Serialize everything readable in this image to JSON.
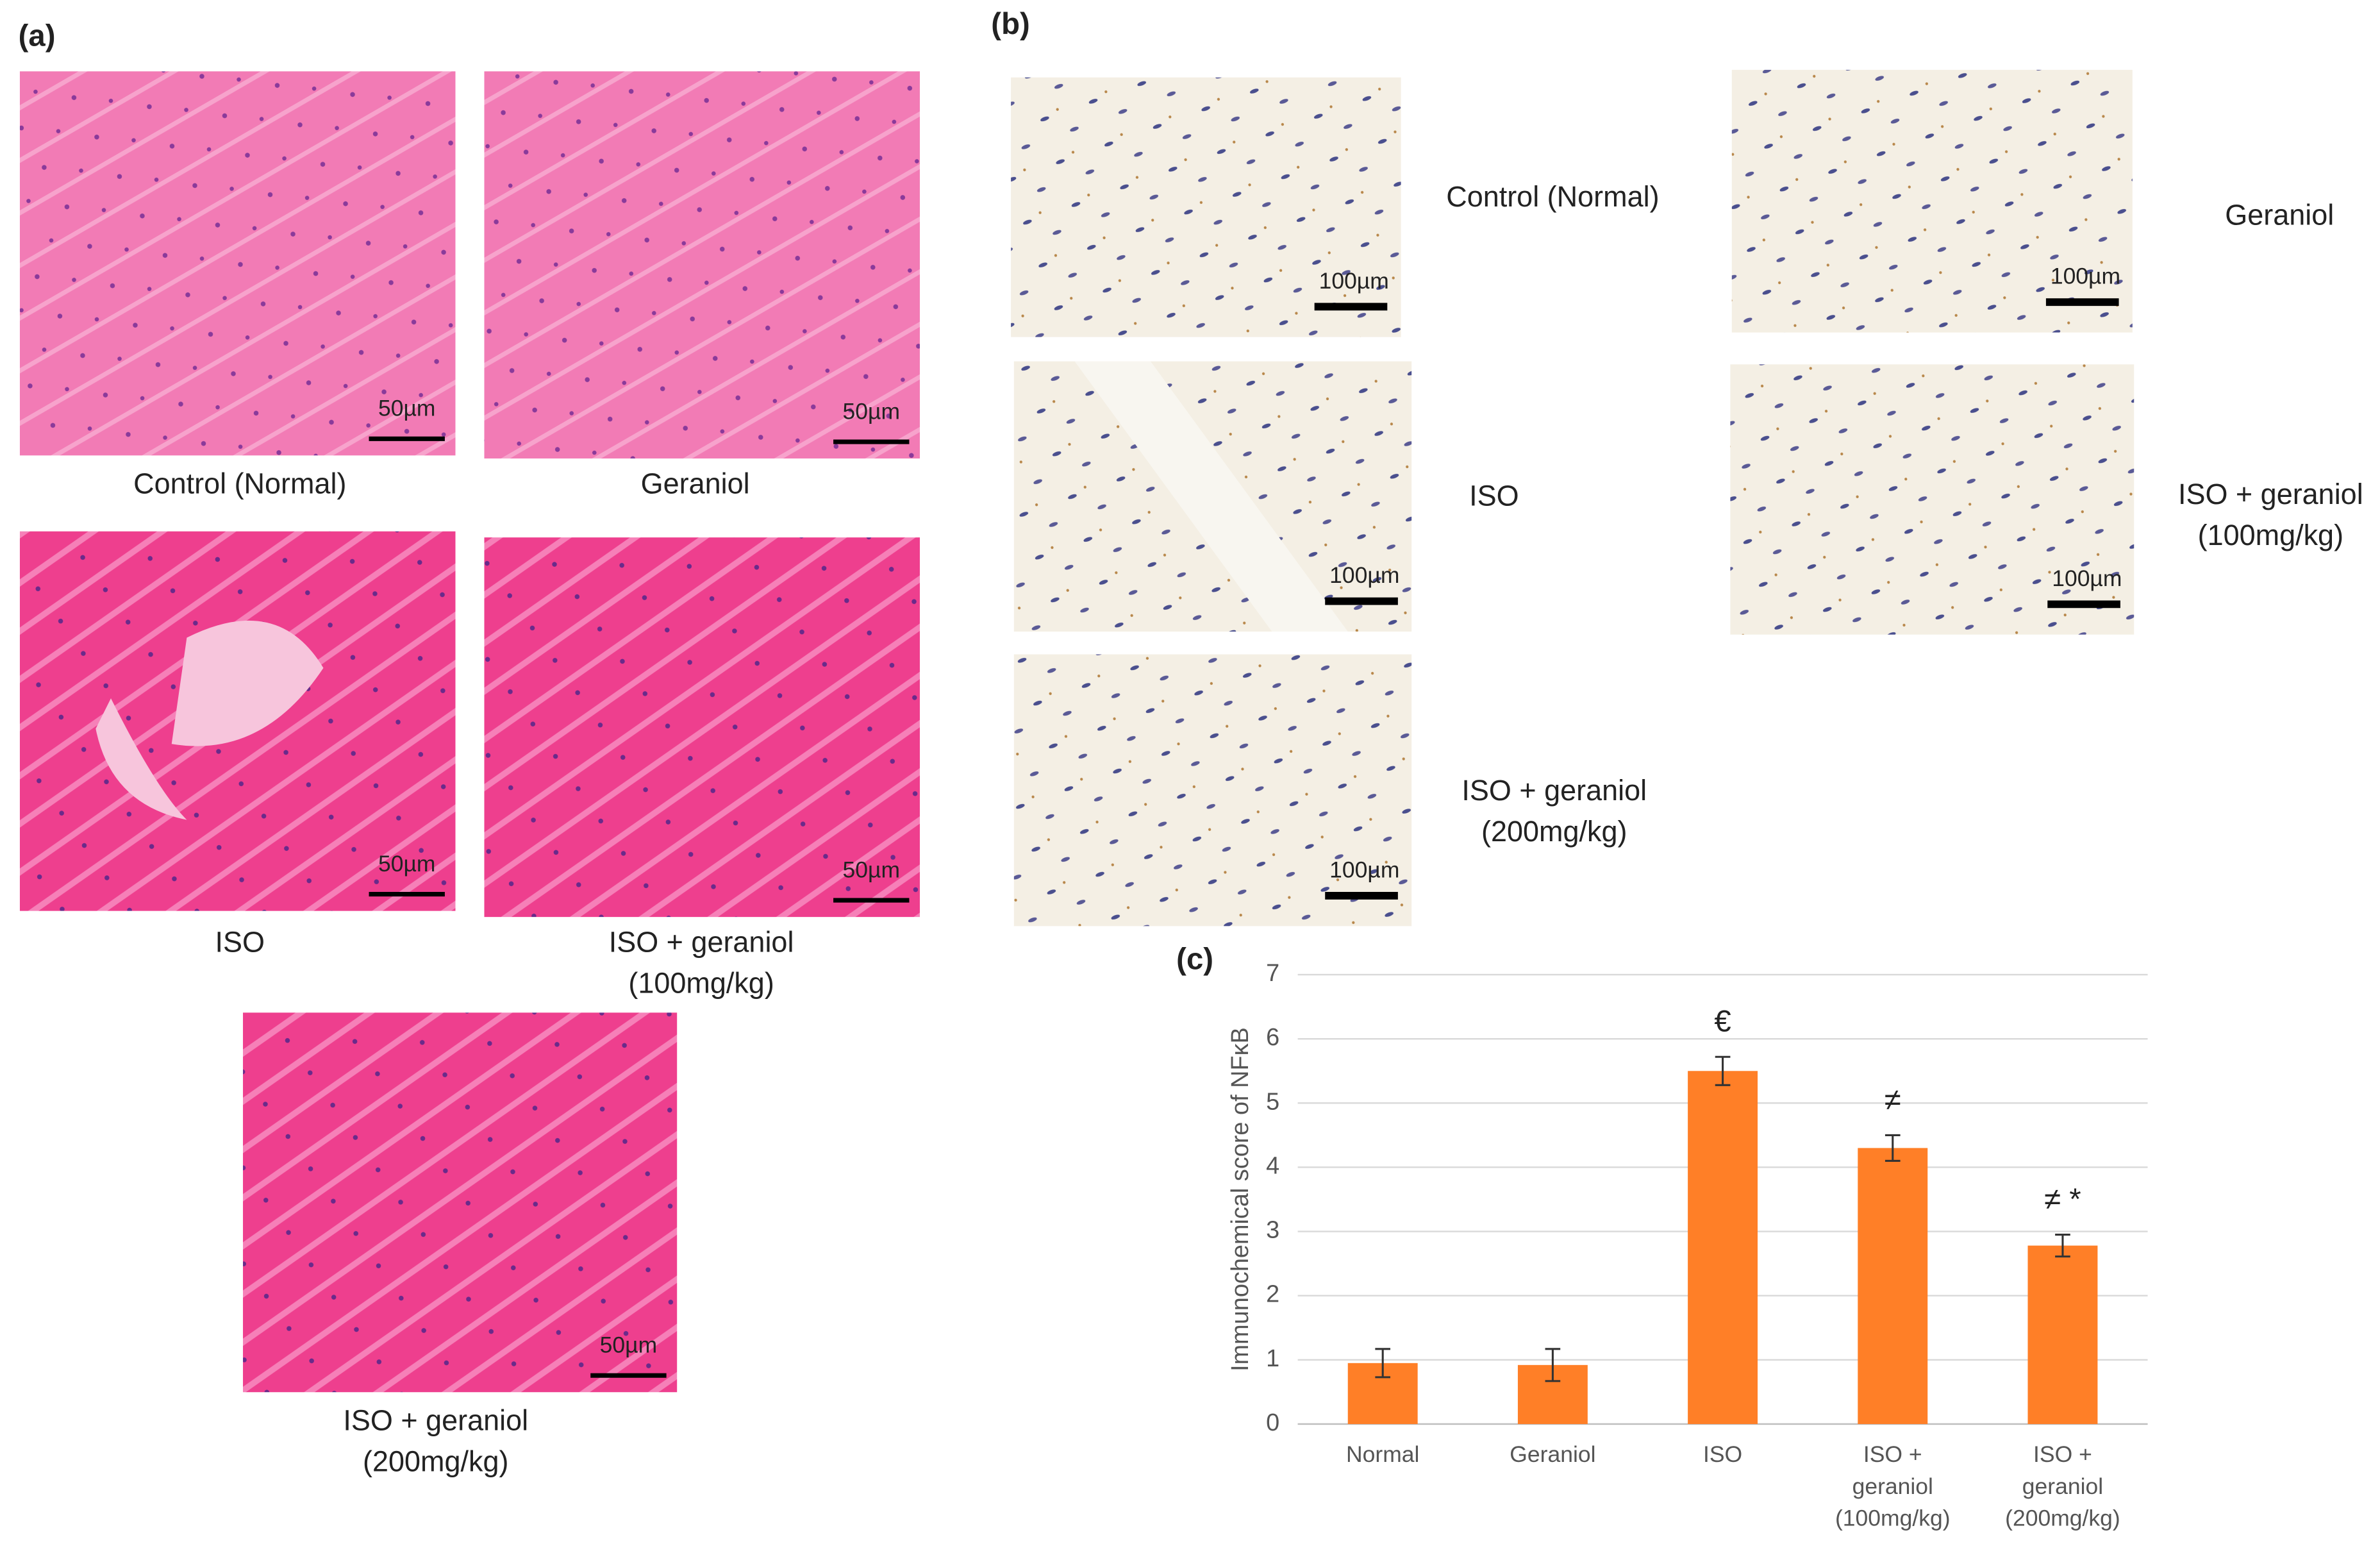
{
  "panel_labels": [
    "(a)",
    "(b)",
    "(c)"
  ],
  "panel_a": [
    {
      "caption": [
        "Control (Normal)"
      ],
      "scale": "50µm"
    },
    {
      "caption": [
        "Geraniol"
      ],
      "scale": "50µm"
    },
    {
      "caption": [
        "ISO"
      ],
      "scale": "50µm"
    },
    {
      "caption": [
        "ISO + geraniol",
        "(100mg/kg)"
      ],
      "scale": "50µm"
    },
    {
      "caption": [
        "ISO + geraniol",
        "(200mg/kg)"
      ],
      "scale": "50µm"
    }
  ],
  "panel_b": [
    {
      "caption": [
        "Control (Normal)"
      ],
      "scale": "100µm"
    },
    {
      "caption": [
        "Geraniol"
      ],
      "scale": "100µm"
    },
    {
      "caption": [
        "ISO"
      ],
      "scale": "100µm"
    },
    {
      "caption": [
        "ISO + geraniol",
        "(100mg/kg)"
      ],
      "scale": "100µm"
    },
    {
      "caption": [
        "ISO + geraniol",
        "(200mg/kg)"
      ],
      "scale": "100µm"
    }
  ],
  "chart_data": {
    "type": "bar",
    "ylabel": "Immunochemical score of NFκB",
    "categories": [
      "Normal",
      "Geraniol",
      "ISO",
      "ISO + geraniol (100mg/kg)",
      "ISO + geraniol (200mg/kg)"
    ],
    "values": [
      0.95,
      0.92,
      5.5,
      4.3,
      2.78
    ],
    "errors": [
      0.22,
      0.25,
      0.22,
      0.2,
      0.17
    ],
    "color": "#ff7f27",
    "ylim": [
      0,
      7
    ],
    "yticks": [
      0,
      1,
      2,
      3,
      4,
      5,
      6,
      7
    ],
    "grid": true,
    "annotations": [
      {
        "text": "€",
        "category": "ISO"
      },
      {
        "text": "≠",
        "category": "ISO + geraniol (100mg/kg)"
      },
      {
        "text": "≠ *",
        "category": "ISO + geraniol (200mg/kg)"
      }
    ]
  }
}
